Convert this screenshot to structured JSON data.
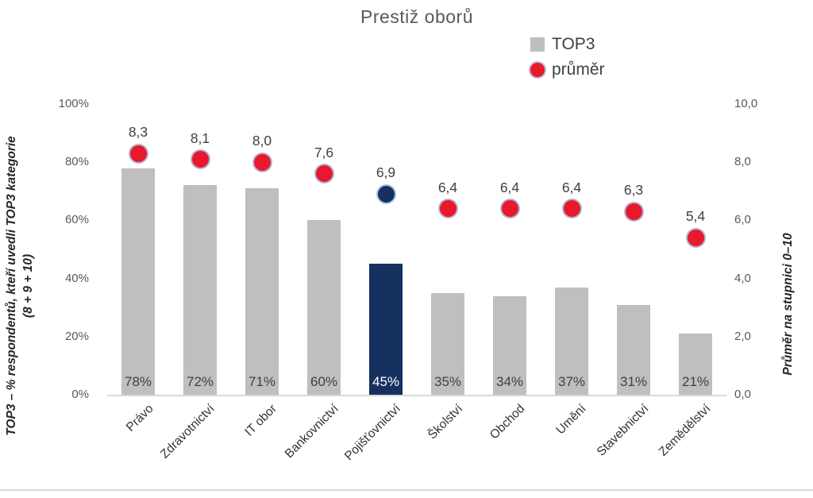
{
  "title": "Prestiž oborů",
  "legend": {
    "items": [
      {
        "label": "TOP3",
        "marker": "square"
      },
      {
        "label": "průměr",
        "marker": "circle"
      }
    ]
  },
  "left_axis": {
    "title_line1": "TOP3 – % respondentů, kteří uvedli TOP3 kategorie",
    "title_line2": "(8 + 9 + 10)",
    "ticks": [
      "100%",
      "80%",
      "60%",
      "40%",
      "20%",
      "0%"
    ]
  },
  "right_axis": {
    "title": "Průměr na stupnici 0–10",
    "ticks": [
      "10,0",
      "8,0",
      "6,0",
      "4,0",
      "2,0",
      "0,0"
    ]
  },
  "colors": {
    "bar": "#bfbfbf",
    "bar_highlight": "#16305f",
    "bar_label": "#404040",
    "bar_label_highlight": "#ffffff",
    "dot_fill": "#e8192c",
    "dot_border": "rgba(110,100,160,0.5)",
    "dot_highlight_fill": "#16305f",
    "dot_highlight_border": "rgba(140,180,225,0.8)"
  },
  "chart_data": {
    "type": "bar",
    "subtype": "combo bar + scatter markers, dual axis",
    "title": "Prestiž oborů",
    "categories": [
      "Právo",
      "Zdravotnictví",
      "IT obor",
      "Bankovnictví",
      "Pojišťovnictví",
      "Školství",
      "Obchod",
      "Umění",
      "Stavebnictví",
      "Zemědělství"
    ],
    "series": [
      {
        "name": "TOP3",
        "type": "bar",
        "axis": "left",
        "values": [
          78,
          72,
          71,
          60,
          45,
          35,
          34,
          37,
          31,
          21
        ],
        "labels": [
          "78%",
          "72%",
          "71%",
          "60%",
          "45%",
          "35%",
          "34%",
          "37%",
          "31%",
          "21%"
        ]
      },
      {
        "name": "průměr",
        "type": "scatter",
        "axis": "right",
        "values": [
          8.3,
          8.1,
          8.0,
          7.6,
          6.9,
          6.4,
          6.4,
          6.4,
          6.3,
          5.4
        ],
        "labels": [
          "8,3",
          "8,1",
          "8,0",
          "7,6",
          "6,9",
          "6,4",
          "6,4",
          "6,4",
          "6,3",
          "5,4"
        ]
      }
    ],
    "highlight_category": "Pojišťovnictví",
    "highlight_index": 4,
    "left_ylabel": "TOP3 – % respondentů, kteří uvedli TOP3 kategorie (8 + 9 + 10)",
    "right_ylabel": "Průměr na stupnici 0–10",
    "left_ylim_percent": [
      0,
      100
    ],
    "right_ylim": [
      0,
      10
    ],
    "grid": false,
    "legend_position": "top-right"
  }
}
